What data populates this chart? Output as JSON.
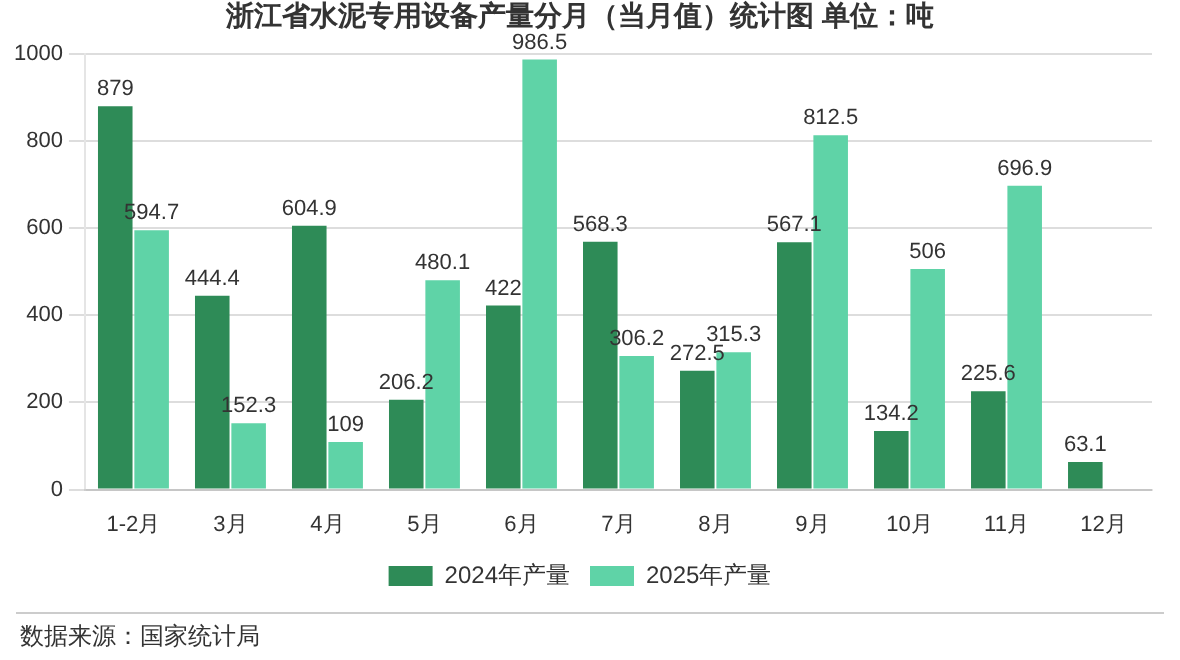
{
  "chart_data": {
    "type": "bar",
    "title": "浙江省水泥专用设备产量分月（当月值）统计图 单位：吨",
    "categories": [
      "1-2月",
      "3月",
      "4月",
      "5月",
      "6月",
      "7月",
      "8月",
      "9月",
      "10月",
      "11月",
      "12月"
    ],
    "series": [
      {
        "name": "2024年产量",
        "color": "#2e8b57",
        "values": [
          879,
          444.4,
          604.9,
          206.2,
          422,
          568.3,
          272.5,
          567.1,
          134.2,
          225.6,
          63.1
        ]
      },
      {
        "name": "2025年产量",
        "color": "#5fd3a7",
        "values": [
          594.7,
          152.3,
          109,
          480.1,
          986.5,
          306.2,
          315.3,
          812.5,
          506,
          696.9,
          null
        ]
      }
    ],
    "ylim": [
      0,
      1000
    ],
    "yticks": [
      0,
      200,
      400,
      600,
      800,
      1000
    ],
    "grid": "y",
    "legend": "bottom",
    "data_labels": true,
    "annotations": [
      "数据来源：国家统计局"
    ]
  }
}
